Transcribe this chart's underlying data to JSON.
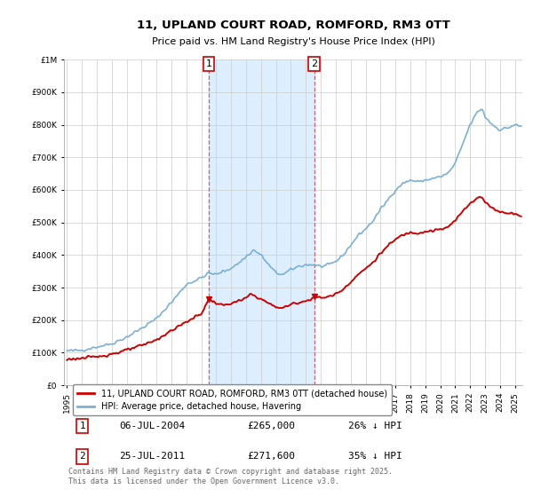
{
  "title": "11, UPLAND COURT ROAD, ROMFORD, RM3 0TT",
  "subtitle": "Price paid vs. HM Land Registry's House Price Index (HPI)",
  "legend_label_red": "11, UPLAND COURT ROAD, ROMFORD, RM3 0TT (detached house)",
  "legend_label_blue": "HPI: Average price, detached house, Havering",
  "footer": "Contains HM Land Registry data © Crown copyright and database right 2025.\nThis data is licensed under the Open Government Licence v3.0.",
  "sale1_date": 2004.51,
  "sale1_label": "1",
  "sale1_price": 265000,
  "sale1_text": "06-JUL-2004",
  "sale1_pct": "26% ↓ HPI",
  "sale2_date": 2011.56,
  "sale2_label": "2",
  "sale2_price": 271600,
  "sale2_text": "25-JUL-2011",
  "sale2_pct": "35% ↓ HPI",
  "ylim": [
    0,
    1000000
  ],
  "xlim_start": 1994.8,
  "xlim_end": 2025.5,
  "color_red": "#cc0000",
  "color_blue": "#7ab0d4",
  "color_shade": "#ddeeff",
  "background_color": "#ffffff",
  "grid_color": "#cccccc"
}
